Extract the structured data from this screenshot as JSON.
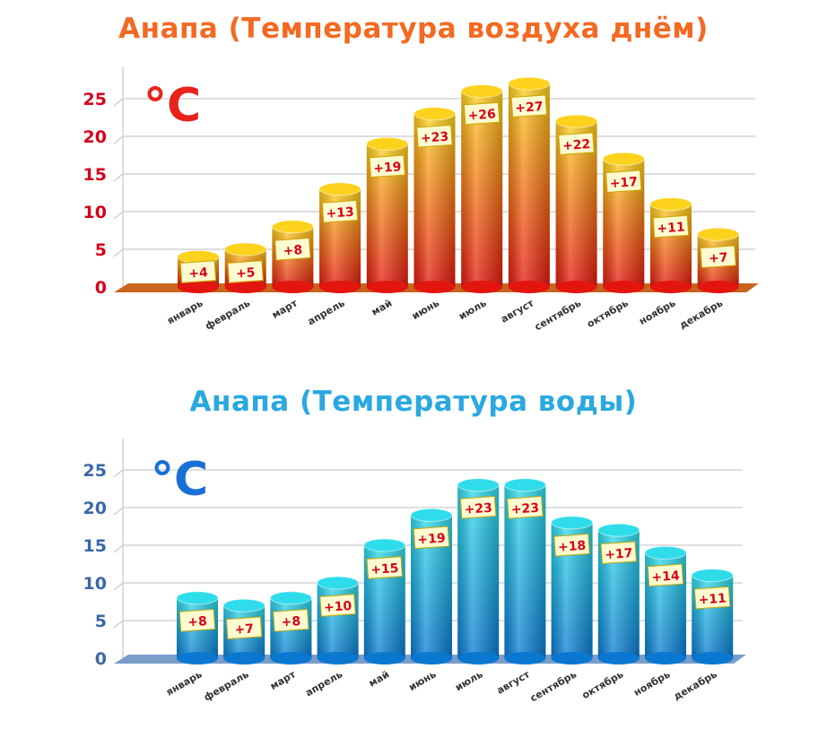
{
  "chart_data": [
    {
      "type": "bar",
      "title": "Анапа (Температура воздуха днём)",
      "unit": "°C",
      "categories": [
        "январь",
        "февраль",
        "март",
        "апрель",
        "май",
        "июнь",
        "июль",
        "август",
        "сентябрь",
        "октябрь",
        "ноябрь",
        "декабрь"
      ],
      "values": [
        4,
        5,
        8,
        13,
        19,
        23,
        26,
        27,
        22,
        17,
        11,
        7
      ],
      "data_labels": [
        "+4",
        "+5",
        "+8",
        "+13",
        "+19",
        "+23",
        "+26",
        "+27",
        "+22",
        "+17",
        "+11",
        "+7"
      ],
      "yticks": [
        "0",
        "5",
        "10",
        "15",
        "20",
        "25"
      ],
      "ylim": [
        0,
        28
      ],
      "grid": true,
      "colors": {
        "title": "#f26a21",
        "unit": "#e8231b",
        "ticks": "#d6001c",
        "bar_top": "#fdd21c",
        "bar_bottom": "#e3150f",
        "floor": "#c8641e"
      }
    },
    {
      "type": "bar",
      "title": "Анапа (Температура воды)",
      "unit": "°C",
      "categories": [
        "январь",
        "февраль",
        "март",
        "апрель",
        "май",
        "июнь",
        "июль",
        "август",
        "сентябрь",
        "октябрь",
        "ноябрь",
        "декабрь"
      ],
      "values": [
        8,
        7,
        8,
        10,
        15,
        19,
        23,
        23,
        18,
        17,
        14,
        11
      ],
      "data_labels": [
        "+8",
        "+7",
        "+8",
        "+10",
        "+15",
        "+19",
        "+23",
        "+23",
        "+18",
        "+17",
        "+14",
        "+11"
      ],
      "yticks": [
        "0",
        "5",
        "10",
        "15",
        "20",
        "25"
      ],
      "ylim": [
        0,
        28
      ],
      "grid": true,
      "colors": {
        "title": "#2aa8e0",
        "unit": "#1a6fd6",
        "ticks": "#3a67a8",
        "bar_top": "#2fdcea",
        "bar_bottom": "#0a78d0",
        "floor": "#7a9cc8"
      }
    }
  ]
}
